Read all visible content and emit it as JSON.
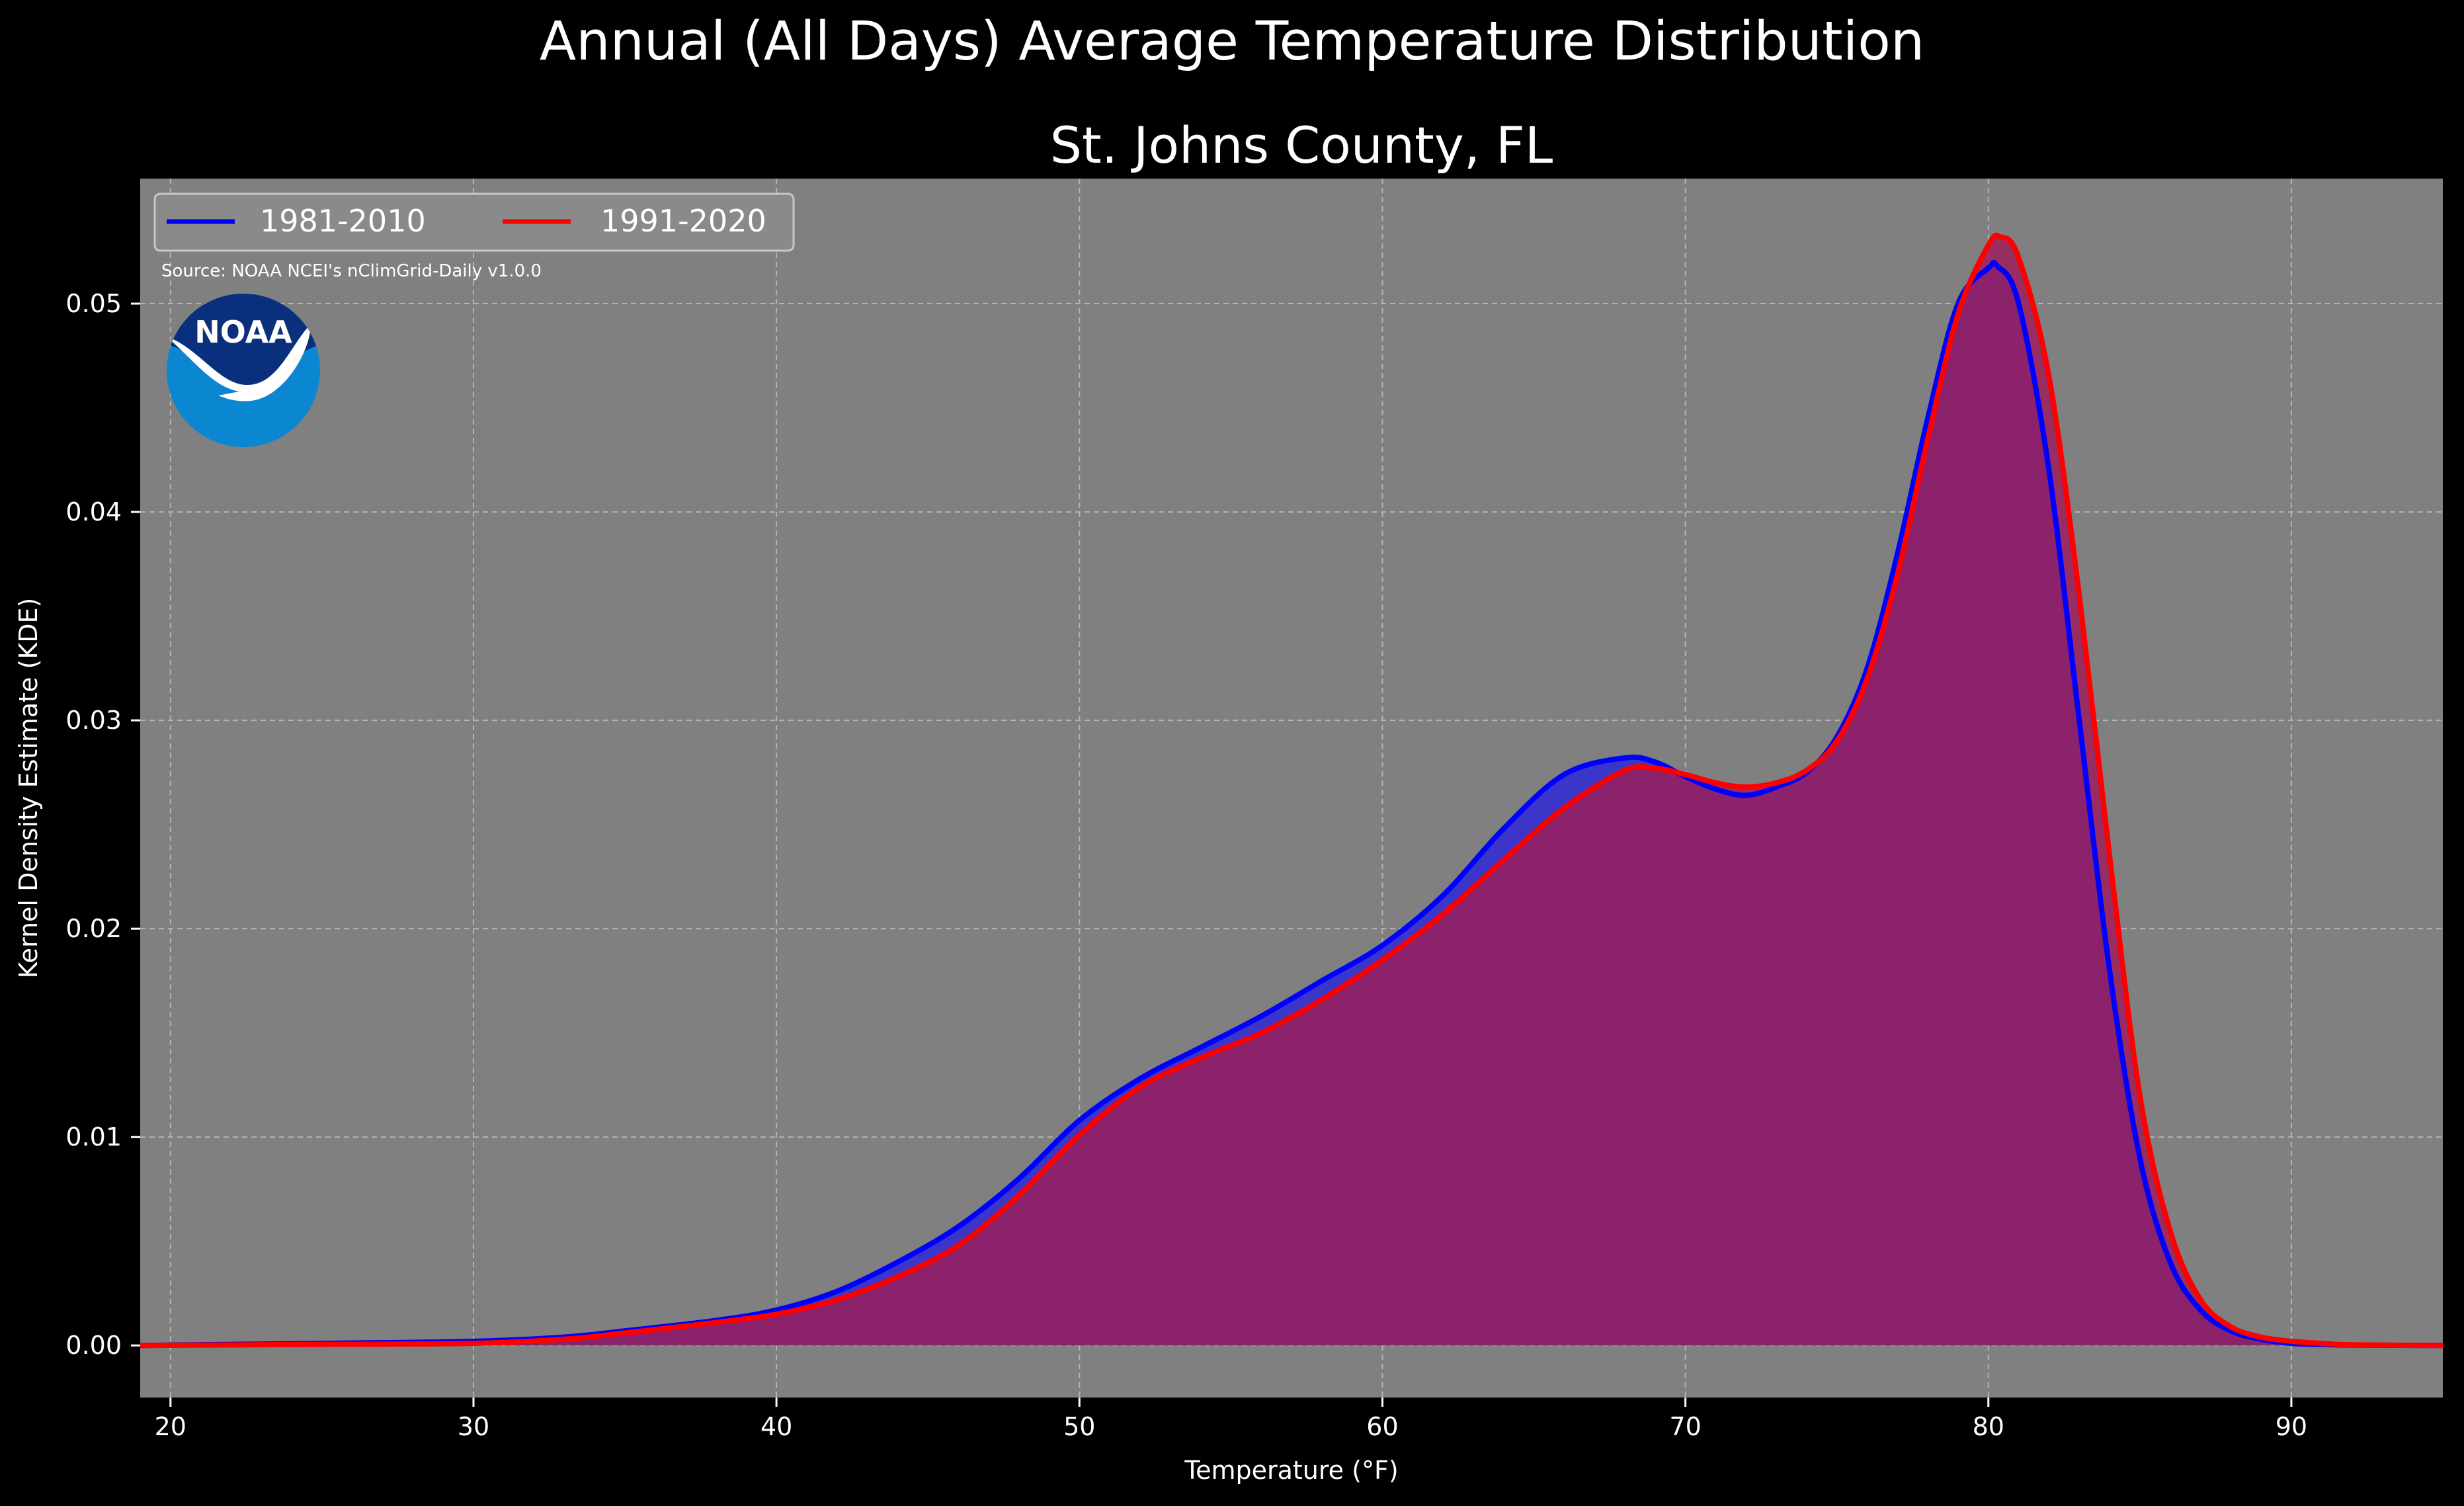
{
  "title": "Annual (All Days) Average Temperature Distribution",
  "subtitle": "St. Johns County, FL",
  "source_note": "Source: NOAA NCEI's nClimGrid-Daily v1.0.0",
  "logo": {
    "text": "NOAA",
    "icon": "noaa-logo"
  },
  "colors": {
    "background": "#000000",
    "plot_bg": "#808080",
    "series_1981": "#0000ff",
    "series_1991": "#ff0000",
    "fill_1981": "#3b35c8",
    "fill_1991": "#9b1f5c",
    "text": "#ffffff"
  },
  "chart_data": {
    "type": "area",
    "title": "St. Johns County, FL",
    "xlabel": "Temperature (°F)",
    "ylabel": "Kernel Density Estimate (KDE)",
    "xlim": [
      19,
      95
    ],
    "ylim": [
      -0.0025,
      0.056
    ],
    "xticks": [
      20,
      30,
      40,
      50,
      60,
      70,
      80,
      90
    ],
    "yticks": [
      0.0,
      0.01,
      0.02,
      0.03,
      0.04,
      0.05
    ],
    "xtick_labels": [
      "20",
      "30",
      "40",
      "50",
      "60",
      "70",
      "80",
      "90"
    ],
    "ytick_labels": [
      "0.00",
      "0.01",
      "0.02",
      "0.03",
      "0.04",
      "0.05"
    ],
    "grid": true,
    "legend": {
      "placement": "top-left",
      "columns": 2
    },
    "series": [
      {
        "name": "1981-2010",
        "color": "#0000ff",
        "x": [
          19,
          25,
          30,
          33,
          35,
          38,
          40,
          42,
          44,
          46,
          48,
          50,
          52,
          54,
          56,
          58,
          60,
          62,
          64,
          66,
          68,
          69,
          70,
          71,
          72,
          73,
          74,
          75,
          76,
          77,
          78,
          79,
          80,
          80.3,
          81,
          82,
          83,
          84,
          85,
          86,
          87,
          88,
          89,
          90,
          91,
          92,
          95
        ],
        "y": [
          0,
          0.0001,
          0.0002,
          0.0004,
          0.0007,
          0.0012,
          0.0017,
          0.0026,
          0.004,
          0.0057,
          0.008,
          0.0108,
          0.0128,
          0.0143,
          0.0158,
          0.0175,
          0.0192,
          0.0216,
          0.0248,
          0.0274,
          0.0282,
          0.028,
          0.0273,
          0.0267,
          0.0264,
          0.0268,
          0.0275,
          0.0292,
          0.0325,
          0.038,
          0.0445,
          0.05,
          0.0517,
          0.0518,
          0.05,
          0.042,
          0.03,
          0.018,
          0.009,
          0.004,
          0.0017,
          0.0007,
          0.0003,
          0.0001,
          5e-05,
          2e-05,
          0
        ]
      },
      {
        "name": "1991-2020",
        "color": "#ff0000",
        "x": [
          19,
          25,
          30,
          33,
          35,
          38,
          40,
          42,
          44,
          46,
          48,
          50,
          52,
          54,
          56,
          58,
          60,
          62,
          64,
          66,
          68,
          69,
          70,
          71,
          72,
          73,
          74,
          75,
          76,
          77,
          78,
          79,
          80,
          80.4,
          81,
          82,
          83,
          84,
          85,
          86,
          87,
          88,
          89,
          90,
          91,
          92,
          95
        ],
        "y": [
          0,
          5e-05,
          0.0001,
          0.0003,
          0.0006,
          0.0011,
          0.0015,
          0.0022,
          0.0033,
          0.0048,
          0.0072,
          0.0101,
          0.0124,
          0.0138,
          0.015,
          0.0166,
          0.0185,
          0.0207,
          0.0233,
          0.0258,
          0.0276,
          0.0277,
          0.0274,
          0.027,
          0.0268,
          0.027,
          0.0276,
          0.029,
          0.032,
          0.037,
          0.0435,
          0.0495,
          0.0528,
          0.0532,
          0.0522,
          0.0465,
          0.036,
          0.0235,
          0.012,
          0.0055,
          0.0022,
          0.0009,
          0.0004,
          0.0002,
          0.0001,
          3e-05,
          0
        ]
      }
    ]
  }
}
